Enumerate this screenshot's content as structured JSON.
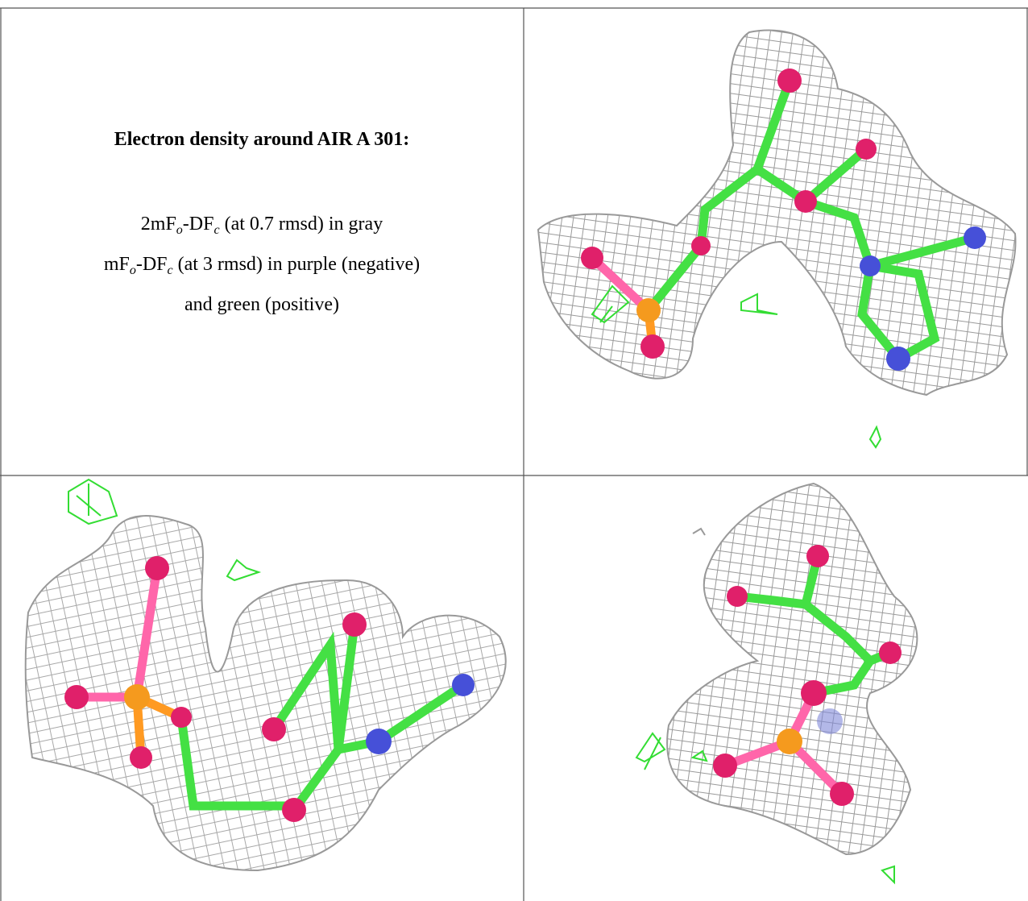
{
  "figure": {
    "title": "Electron density around AIR A 301:",
    "legend": [
      [
        "2mF",
        "o",
        "-DF",
        "c",
        " (at 0.7 rmsd) in gray"
      ],
      [
        "mF",
        "o",
        "-DF",
        "c",
        " (at 3 rmsd) in purple (negative)"
      ],
      [
        "and green (positive)"
      ]
    ]
  }
}
